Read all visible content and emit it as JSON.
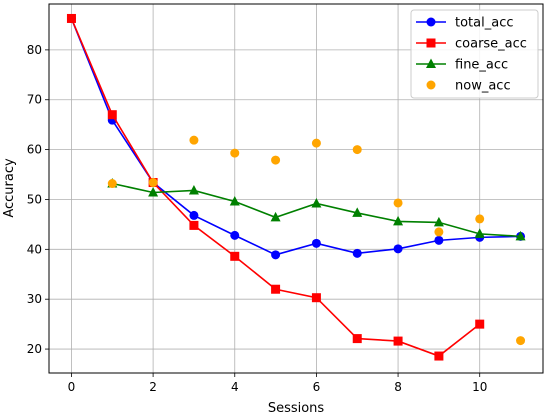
{
  "chart_data": {
    "type": "line",
    "xlabel": "Sessions",
    "ylabel": "Accuracy",
    "xlim": [
      -0.55,
      11.55
    ],
    "ylim": [
      15.2,
      89.2
    ],
    "xticks": [
      0,
      2,
      4,
      6,
      8,
      10
    ],
    "yticks": [
      20,
      30,
      40,
      50,
      60,
      70,
      80
    ],
    "grid": true,
    "legend_position": "top-right",
    "series": [
      {
        "name": "total_acc",
        "kind": "line",
        "marker": "circle",
        "color": "#0000ff",
        "x": [
          0,
          1,
          2,
          3,
          4,
          5,
          6,
          7,
          8,
          9,
          10,
          11
        ],
        "values": [
          86.3,
          65.9,
          53.4,
          46.8,
          42.8,
          38.9,
          41.2,
          39.2,
          40.1,
          41.8,
          42.4,
          42.6
        ]
      },
      {
        "name": "coarse_acc",
        "kind": "line",
        "marker": "square",
        "color": "#ff0000",
        "x": [
          0,
          1,
          2,
          3,
          4,
          5,
          6,
          7,
          8,
          9,
          10
        ],
        "values": [
          86.3,
          67.0,
          53.4,
          44.8,
          38.6,
          32.0,
          30.3,
          22.1,
          21.6,
          18.6,
          25.0
        ]
      },
      {
        "name": "fine_acc",
        "kind": "line",
        "marker": "triangle",
        "color": "#008000",
        "x": [
          1,
          2,
          3,
          4,
          5,
          6,
          7,
          8,
          9,
          10,
          11
        ],
        "values": [
          53.2,
          51.4,
          51.8,
          49.6,
          46.4,
          49.2,
          47.3,
          45.6,
          45.4,
          43.1,
          42.6
        ]
      },
      {
        "name": "now_acc",
        "kind": "scatter",
        "marker": "circle",
        "color": "#ffa500",
        "x": [
          1,
          2,
          3,
          4,
          5,
          6,
          7,
          8,
          9,
          10,
          11
        ],
        "values": [
          53.2,
          53.4,
          61.9,
          59.3,
          57.9,
          61.3,
          60.0,
          49.3,
          43.5,
          46.1,
          21.7
        ]
      }
    ]
  }
}
